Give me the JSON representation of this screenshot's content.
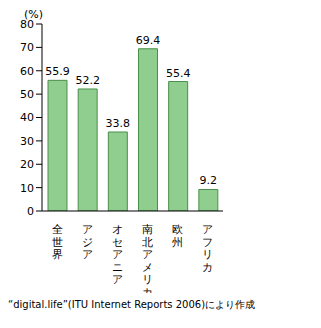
{
  "chart_data": {
    "type": "bar",
    "y_label": "(%)",
    "categories": [
      "全世界",
      "アジア",
      "オセアニア",
      "南北アメリカ",
      "欧州",
      "アフリカ"
    ],
    "values": [
      55.9,
      52.2,
      33.8,
      69.4,
      55.4,
      9.2
    ],
    "color": "#8fce8f",
    "ylim": [
      0,
      80
    ],
    "yticks": [
      0,
      10,
      20,
      30,
      40,
      50,
      60,
      70,
      80
    ],
    "grid": false,
    "data_labels": true,
    "source": "“digital.life”(ITU Internet Reports 2006)により作成"
  }
}
